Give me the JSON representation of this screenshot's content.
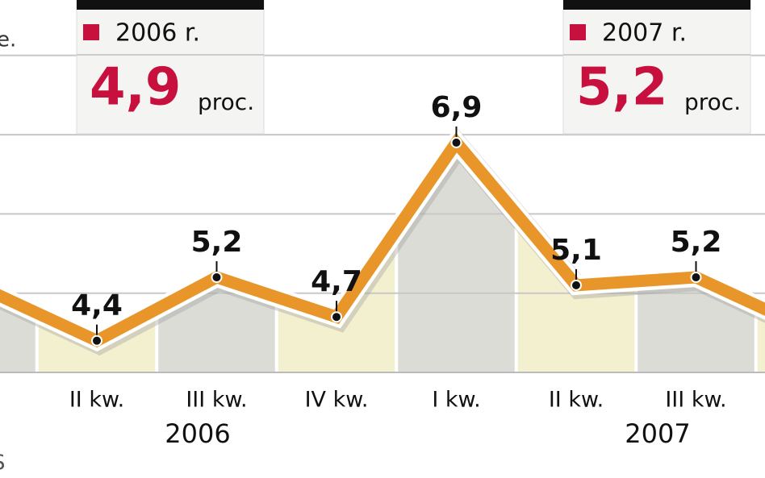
{
  "chart_data": {
    "type": "line",
    "categories": [
      null,
      "II kw.",
      "III kw.",
      "IV kw.",
      "I kw.",
      "II kw.",
      "III kw.",
      null
    ],
    "values": [
      5.1,
      4.4,
      5.2,
      4.7,
      6.9,
      5.1,
      5.2,
      4.5
    ],
    "value_labels": [
      null,
      "4,4",
      "5,2",
      "4,7",
      "6,9",
      "5,1",
      "5,2",
      null
    ],
    "color": "#e8962a",
    "ylim": [
      4,
      8.7
    ],
    "yticks": [
      5,
      6,
      7,
      8
    ],
    "grid": true,
    "groups": [
      "2006",
      "2007"
    ],
    "summary": [
      {
        "label": "2006 r.",
        "value": 4.9,
        "value_label": "4,9",
        "unit": "proc."
      },
      {
        "label": "2007 r.",
        "value": 5.2,
        "value_label": "5,2",
        "unit": "proc."
      }
    ],
    "annotations": [
      "e.",
      "S"
    ]
  }
}
